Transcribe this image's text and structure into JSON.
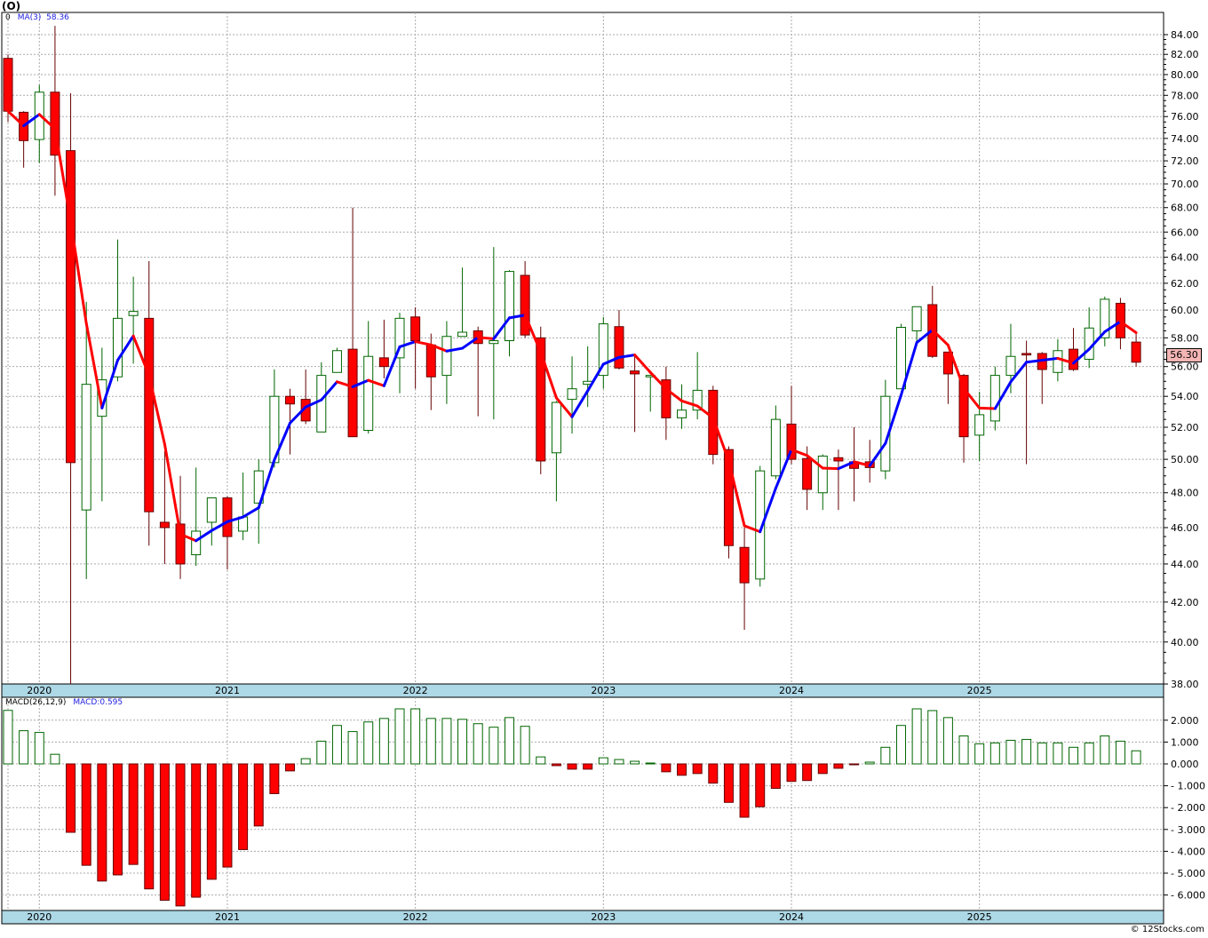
{
  "header": {
    "ticker": "(O)",
    "ma_legend_prefix": "0",
    "ma_legend_label": "MA(3)",
    "ma_legend_value": "58.36"
  },
  "last_price_label": "56.30",
  "macd_legend": {
    "label": "MACD(26,12,9)",
    "value": "MACD:0.595"
  },
  "footer": "© 12Stocks.com",
  "colors": {
    "up": "#006600",
    "down": "#ff0000",
    "ma_up": "#0000ff",
    "ma_down": "#ff0000",
    "axis_band": "#add8e6",
    "last_price_bg": "#f4b5b5"
  },
  "chart_data": [
    {
      "type": "candlestick",
      "title": "(O)",
      "period": "monthly",
      "first_month": "2019-11",
      "ylim": [
        38,
        84
      ],
      "yscale": "log",
      "y_ticks": [
        38,
        40,
        42,
        44,
        46,
        48,
        50,
        52,
        54,
        56,
        58,
        60,
        62,
        64,
        66,
        68,
        70,
        72,
        74,
        76,
        78,
        80,
        82,
        84
      ],
      "x_tick_labels": [
        {
          "label": "2020",
          "index": 2
        },
        {
          "label": "2021",
          "index": 14
        },
        {
          "label": "2022",
          "index": 26
        },
        {
          "label": "2023",
          "index": 38
        },
        {
          "label": "2024",
          "index": 50
        },
        {
          "label": "2025",
          "index": 62
        }
      ],
      "grid": true,
      "overlay": "MA(3)",
      "ohlc": [
        [
          81.6,
          82.0,
          75.5,
          76.5
        ],
        [
          76.4,
          76.5,
          71.4,
          73.8
        ],
        [
          73.9,
          79.0,
          71.8,
          78.3
        ],
        [
          78.3,
          84.9,
          69.0,
          72.5
        ],
        [
          72.9,
          78.2,
          38.0,
          49.8
        ],
        [
          47.0,
          60.6,
          43.2,
          54.8
        ],
        [
          52.7,
          57.3,
          47.5,
          55.1
        ],
        [
          55.3,
          65.4,
          55.0,
          59.4
        ],
        [
          59.6,
          62.5,
          56.2,
          59.9
        ],
        [
          59.4,
          63.7,
          45.0,
          46.9
        ],
        [
          46.3,
          50.5,
          44.0,
          46.0
        ],
        [
          46.2,
          49.0,
          43.2,
          44.0
        ],
        [
          44.5,
          49.5,
          43.9,
          45.8
        ],
        [
          46.3,
          47.7,
          45.0,
          47.7
        ],
        [
          47.7,
          47.8,
          43.7,
          45.5
        ],
        [
          45.8,
          49.2,
          45.3,
          46.6
        ],
        [
          47.4,
          50.0,
          45.1,
          49.3
        ],
        [
          49.8,
          55.8,
          49.5,
          54.0
        ],
        [
          54.0,
          54.5,
          50.3,
          53.5
        ],
        [
          53.8,
          55.8,
          52.2,
          52.4
        ],
        [
          51.7,
          56.3,
          51.7,
          55.4
        ],
        [
          55.6,
          57.3,
          55.6,
          57.1
        ],
        [
          57.2,
          68.0,
          51.4,
          51.4
        ],
        [
          51.8,
          59.2,
          51.6,
          56.7
        ],
        [
          56.6,
          59.3,
          55.2,
          56.0
        ],
        [
          56.6,
          59.8,
          54.2,
          59.4
        ],
        [
          59.5,
          60.2,
          54.5,
          57.8
        ],
        [
          57.5,
          58.3,
          53.1,
          55.3
        ],
        [
          55.4,
          59.2,
          53.5,
          58.1
        ],
        [
          58.1,
          63.2,
          58.1,
          58.4
        ],
        [
          58.5,
          58.8,
          52.7,
          57.6
        ],
        [
          57.6,
          64.8,
          52.5,
          57.8
        ],
        [
          57.8,
          63.0,
          56.7,
          62.9
        ],
        [
          62.6,
          63.7,
          58.0,
          58.2
        ],
        [
          58.0,
          58.8,
          49.1,
          49.9
        ],
        [
          50.4,
          53.7,
          47.5,
          53.6
        ],
        [
          53.8,
          56.7,
          51.6,
          54.5
        ],
        [
          54.8,
          57.4,
          53.3,
          55.0
        ],
        [
          55.4,
          59.5,
          54.5,
          59.0
        ],
        [
          58.8,
          60.0,
          55.8,
          55.9
        ],
        [
          55.7,
          56.8,
          51.7,
          55.5
        ],
        [
          55.3,
          55.4,
          53.0,
          55.4
        ],
        [
          55.1,
          56.0,
          51.2,
          52.6
        ],
        [
          52.6,
          54.8,
          51.9,
          53.1
        ],
        [
          53.1,
          57.0,
          52.5,
          54.4
        ],
        [
          54.4,
          54.7,
          49.7,
          50.3
        ],
        [
          50.6,
          50.8,
          44.3,
          45.0
        ],
        [
          44.9,
          46.0,
          40.6,
          43.0
        ],
        [
          43.2,
          49.6,
          42.8,
          49.3
        ],
        [
          49.0,
          53.4,
          48.8,
          52.5
        ],
        [
          52.2,
          54.7,
          49.7,
          50.0
        ],
        [
          50.05,
          50.8,
          47.0,
          48.2
        ],
        [
          48.0,
          50.3,
          47.0,
          50.2
        ],
        [
          50.1,
          50.6,
          47.0,
          49.9
        ],
        [
          49.85,
          52.0,
          47.5,
          49.45
        ],
        [
          49.85,
          51.2,
          48.6,
          49.5
        ],
        [
          49.3,
          55.1,
          48.8,
          54.0
        ],
        [
          54.5,
          59.0,
          54.5,
          58.75
        ],
        [
          58.5,
          60.25,
          57.7,
          60.25
        ],
        [
          60.4,
          61.8,
          56.6,
          56.7
        ],
        [
          57.0,
          57.0,
          53.5,
          55.5
        ],
        [
          55.4,
          55.5,
          49.8,
          51.4
        ],
        [
          51.5,
          54.3,
          49.9,
          52.8
        ],
        [
          52.4,
          56.0,
          51.8,
          55.4
        ],
        [
          55.4,
          59.0,
          54.2,
          56.7
        ],
        [
          56.9,
          57.8,
          49.7,
          56.8
        ],
        [
          56.9,
          57.0,
          53.5,
          55.8
        ],
        [
          55.6,
          57.9,
          55.0,
          57.1
        ],
        [
          57.2,
          58.7,
          55.7,
          55.8
        ],
        [
          56.5,
          60.2,
          55.9,
          58.7
        ],
        [
          58.0,
          61.0,
          57.4,
          60.8
        ],
        [
          60.5,
          60.9,
          57.2,
          58.0
        ],
        [
          57.7,
          58.3,
          56.0,
          56.3
        ]
      ]
    },
    {
      "type": "bar",
      "title": "MACD(26,12,9)",
      "ylim": [
        -6.5,
        2.6
      ],
      "y_ticks": [
        -6,
        -5,
        -4,
        -3,
        -2,
        -1,
        0,
        1,
        2
      ],
      "y_tick_labels": [
        "- 6.000",
        "- 5.000",
        "- 4.000",
        "- 3.000",
        "- 2.000",
        "- 1.000",
        "0.000",
        "1.000",
        "2.000"
      ],
      "values": [
        2.45,
        1.52,
        1.44,
        0.44,
        -3.13,
        -4.64,
        -5.36,
        -5.08,
        -4.6,
        -5.72,
        -6.24,
        -6.5,
        -6.1,
        -5.28,
        -4.72,
        -3.92,
        -2.84,
        -1.36,
        -0.32,
        0.24,
        1.04,
        1.76,
        1.48,
        1.92,
        2.08,
        2.52,
        2.52,
        2.08,
        2.08,
        2.04,
        1.84,
        1.68,
        2.12,
        1.72,
        0.32,
        -0.08,
        -0.24,
        -0.24,
        0.28,
        0.2,
        0.12,
        0.04,
        -0.36,
        -0.52,
        -0.44,
        -0.88,
        -1.76,
        -2.44,
        -1.96,
        -1.12,
        -0.8,
        -0.76,
        -0.44,
        -0.2,
        -0.04,
        0.08,
        0.76,
        1.76,
        2.52,
        2.44,
        2.12,
        1.28,
        0.92,
        0.96,
        1.08,
        1.12,
        0.96,
        0.96,
        0.76,
        0.96,
        1.28,
        1.04,
        0.6
      ]
    }
  ]
}
